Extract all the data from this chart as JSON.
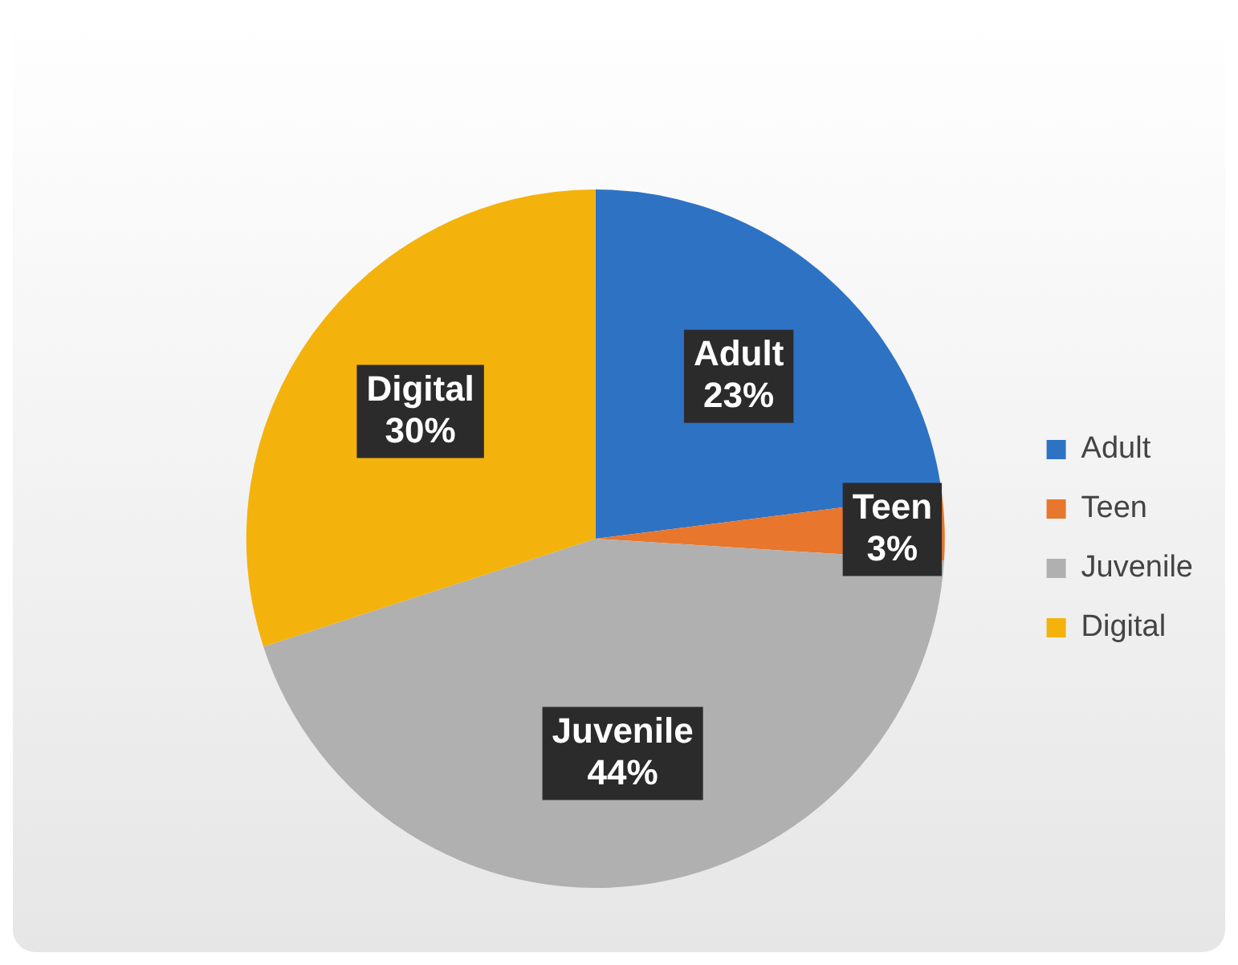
{
  "chart_data": {
    "type": "pie",
    "categories": [
      "Adult",
      "Teen",
      "Juvenile",
      "Digital"
    ],
    "values": [
      23,
      3,
      44,
      30
    ],
    "colors": [
      "#2e72c4",
      "#e8762c",
      "#b0b0b0",
      "#f4b20c"
    ],
    "value_labels": [
      "23%",
      "3%",
      "44%",
      "30%"
    ],
    "legend": "right"
  }
}
